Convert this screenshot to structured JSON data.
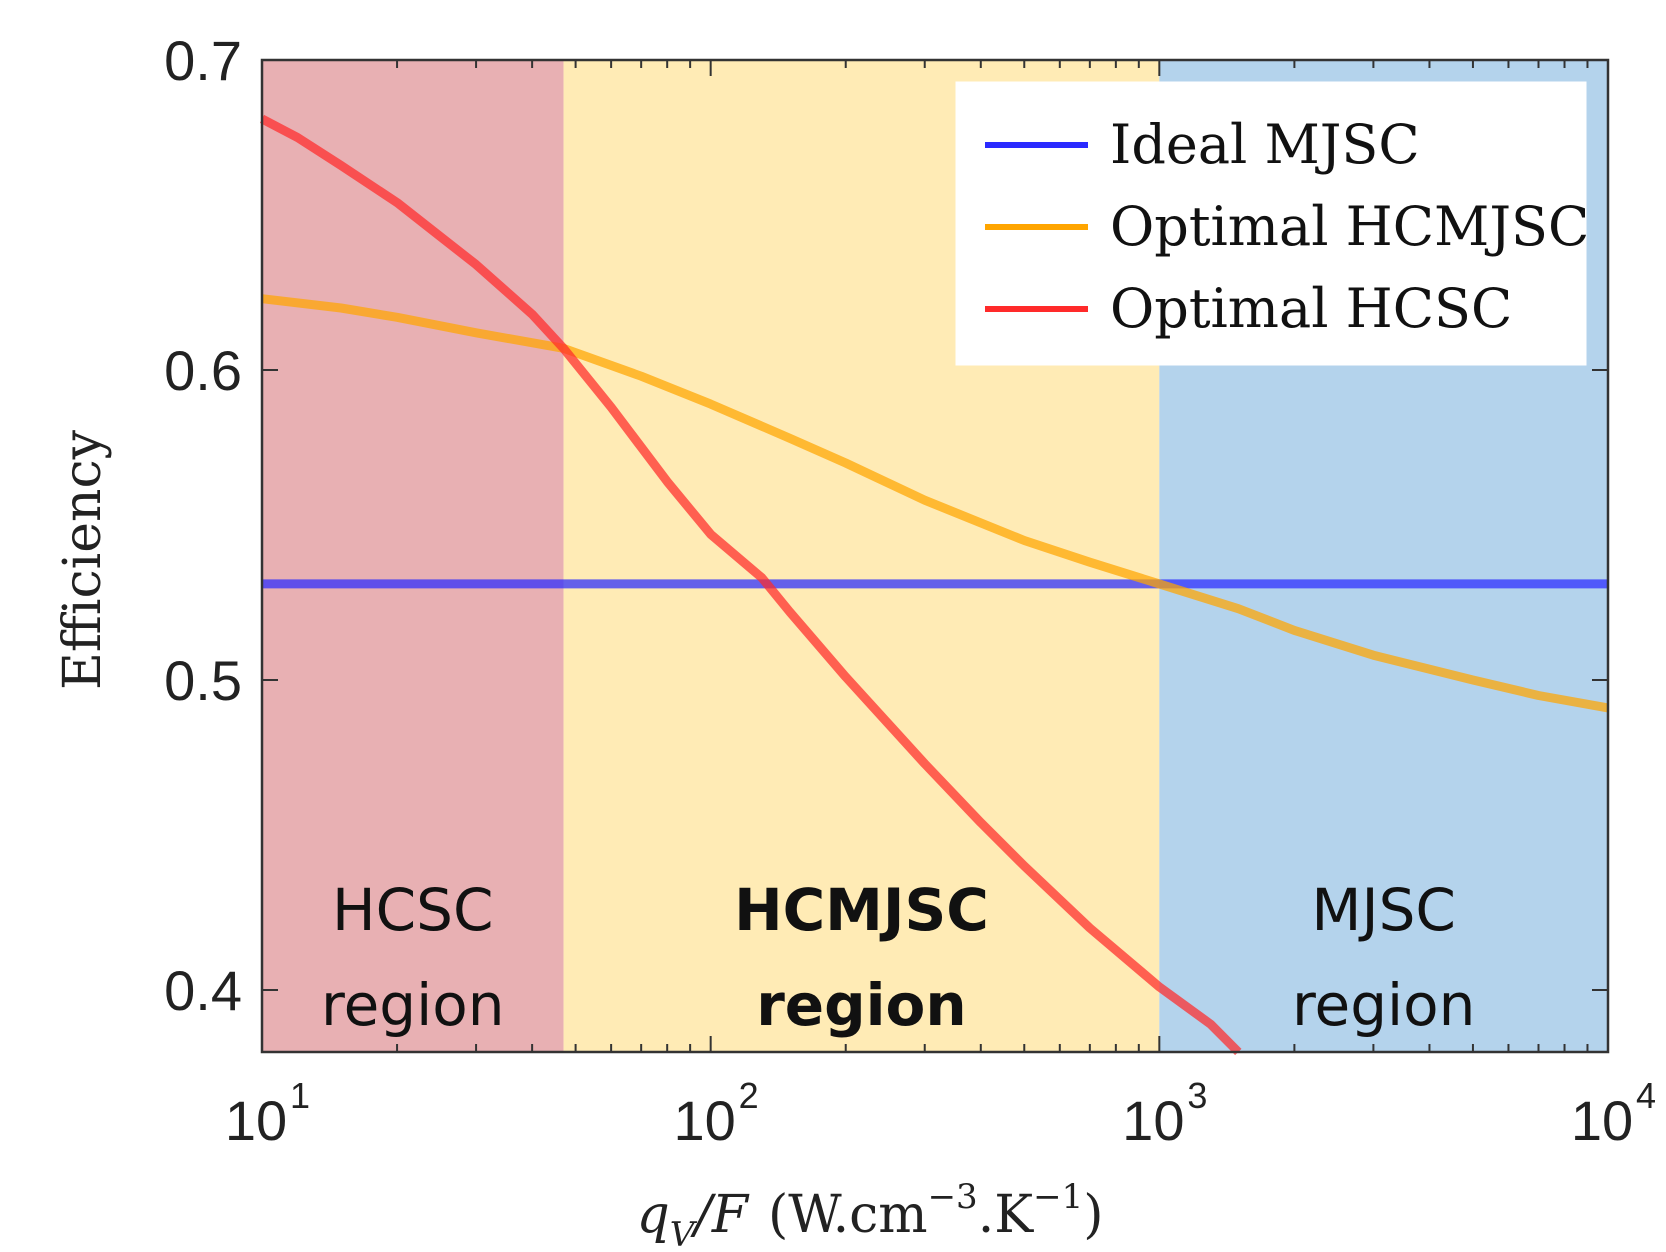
{
  "chart_data": {
    "type": "line",
    "x_scale": "log",
    "xlim": [
      10,
      10000
    ],
    "ylim": [
      0.38,
      0.7
    ],
    "x_ticks": [
      {
        "base": "10",
        "exp": "1",
        "value": 10
      },
      {
        "base": "10",
        "exp": "2",
        "value": 100
      },
      {
        "base": "10",
        "exp": "3",
        "value": 1000
      },
      {
        "base": "10",
        "exp": "4",
        "value": 10000
      }
    ],
    "y_ticks": [
      "0.4",
      "0.5",
      "0.6",
      "0.7"
    ],
    "y_tick_values": [
      0.4,
      0.5,
      0.6,
      0.7
    ],
    "ylabel": "Efficiency",
    "xlabel": {
      "q": "q",
      "v": "V",
      "slash_f": "/F",
      "unit_open": "(W.cm",
      "exp1": "−3",
      "unit_mid": ".K",
      "exp2": "−1",
      "unit_close": ")"
    },
    "grid": false,
    "legend_position": "top-right",
    "series": [
      {
        "name": "Ideal MJSC",
        "color": "#2a2aff",
        "x": [
          10,
          10000
        ],
        "y": [
          0.531,
          0.531
        ]
      },
      {
        "name": "Optimal HCMJSC",
        "color": "#ffa500",
        "x": [
          10,
          15,
          20,
          30,
          47,
          70,
          100,
          150,
          200,
          300,
          500,
          700,
          1000,
          1500,
          2000,
          3000,
          5000,
          7000,
          10000
        ],
        "y": [
          0.623,
          0.62,
          0.617,
          0.612,
          0.607,
          0.598,
          0.589,
          0.578,
          0.57,
          0.558,
          0.545,
          0.538,
          0.531,
          0.523,
          0.516,
          0.508,
          0.5,
          0.495,
          0.491
        ]
      },
      {
        "name": "Optimal HCSC",
        "color": "#ff2a2a",
        "x": [
          10,
          12,
          15,
          20,
          25,
          30,
          40,
          47,
          60,
          80,
          100,
          130,
          150,
          200,
          300,
          400,
          500,
          700,
          1000,
          1300,
          1500
        ],
        "y": [
          0.681,
          0.675,
          0.666,
          0.654,
          0.643,
          0.634,
          0.618,
          0.607,
          0.588,
          0.564,
          0.547,
          0.533,
          0.522,
          0.501,
          0.473,
          0.454,
          0.44,
          0.42,
          0.401,
          0.389,
          0.38
        ]
      }
    ],
    "regions": [
      {
        "label1": "HCSC",
        "label2": "region",
        "x_start": 10,
        "x_end": 47,
        "color": "#e8b0b3",
        "bold": false
      },
      {
        "label1": "HCMJSC",
        "label2": "region",
        "x_start": 47,
        "x_end": 1000,
        "color": "#ffebb5",
        "bold": true
      },
      {
        "label1": "MJSC",
        "label2": "region",
        "x_start": 1000,
        "x_end": 10000,
        "color": "#b4d3ec",
        "bold": false
      }
    ]
  }
}
